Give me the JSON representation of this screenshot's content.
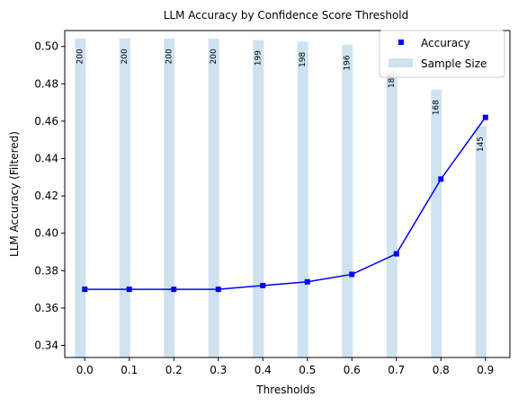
{
  "chart_data": {
    "type": "bar+line",
    "title": "LLM Accuracy by Confidence Score Threshold",
    "xlabel": "Thresholds",
    "ylabel": "LLM Accuracy (Filtered)",
    "x": [
      0.0,
      0.1,
      0.2,
      0.3,
      0.4,
      0.5,
      0.6,
      0.7,
      0.8,
      0.9
    ],
    "x_tick_labels": [
      "0.0",
      "0.1",
      "0.2",
      "0.3",
      "0.4",
      "0.5",
      "0.6",
      "0.7",
      "0.8",
      "0.9"
    ],
    "xlim": [
      -0.045,
      0.955
    ],
    "ylim": [
      0.3335,
      0.5085
    ],
    "y_ticks": [
      0.34,
      0.36,
      0.38,
      0.4,
      0.42,
      0.44,
      0.46,
      0.48,
      0.5
    ],
    "y_tick_labels": [
      "0.34",
      "0.36",
      "0.38",
      "0.40",
      "0.42",
      "0.44",
      "0.46",
      "0.48",
      "0.50"
    ],
    "bar_ylim": [
      0,
      205
    ],
    "grid": false,
    "legend_position": "top-right",
    "series": [
      {
        "name": "Accuracy",
        "kind": "line-with-square-markers",
        "color": "#0000ff",
        "values": [
          0.37,
          0.37,
          0.37,
          0.37,
          0.372,
          0.374,
          0.378,
          0.389,
          0.429,
          0.462
        ]
      },
      {
        "name": "Sample Size",
        "kind": "bar",
        "color": "#cfe2f0",
        "values": [
          200,
          200,
          200,
          200,
          199,
          198,
          196,
          185,
          168,
          145
        ],
        "labels": [
          "200",
          "200",
          "200",
          "200",
          "199",
          "198",
          "196",
          "185",
          "168",
          "145"
        ]
      }
    ]
  }
}
